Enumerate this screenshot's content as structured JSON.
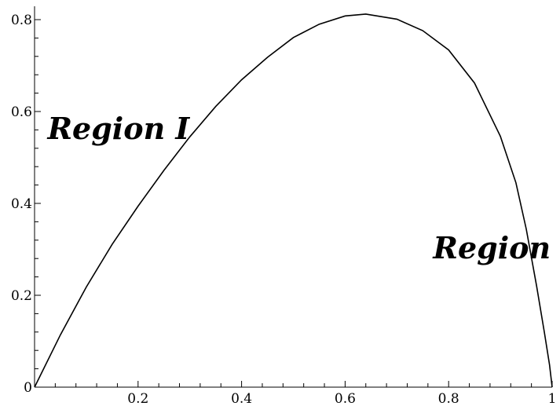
{
  "chart_data": {
    "type": "line",
    "title": "",
    "xlabel": "",
    "ylabel": "",
    "xlim": [
      0,
      1
    ],
    "ylim": [
      0,
      0.8
    ],
    "x_ticks": [
      {
        "value": 0,
        "label": "0"
      },
      {
        "value": 0.2,
        "label": "0.2"
      },
      {
        "value": 0.4,
        "label": "0.4"
      },
      {
        "value": 0.6,
        "label": "0.6"
      },
      {
        "value": 0.8,
        "label": "0.8"
      },
      {
        "value": 1,
        "label": "1"
      }
    ],
    "y_ticks": [
      {
        "value": 0,
        "label": "0"
      },
      {
        "value": 0.2,
        "label": "0.2"
      },
      {
        "value": 0.4,
        "label": "0.4"
      },
      {
        "value": 0.6,
        "label": "0.6"
      },
      {
        "value": 0.8,
        "label": "0.8"
      }
    ],
    "grid": false,
    "series": [
      {
        "color": "#000000",
        "points": [
          [
            0,
            0
          ],
          [
            0.05,
            0.114
          ],
          [
            0.1,
            0.218
          ],
          [
            0.15,
            0.311
          ],
          [
            0.2,
            0.394
          ],
          [
            0.25,
            0.472
          ],
          [
            0.3,
            0.545
          ],
          [
            0.35,
            0.611
          ],
          [
            0.4,
            0.669
          ],
          [
            0.45,
            0.718
          ],
          [
            0.5,
            0.761
          ],
          [
            0.55,
            0.79
          ],
          [
            0.6,
            0.808
          ],
          [
            0.64,
            0.812
          ],
          [
            0.7,
            0.801
          ],
          [
            0.75,
            0.776
          ],
          [
            0.8,
            0.734
          ],
          [
            0.85,
            0.662
          ],
          [
            0.9,
            0.546
          ],
          [
            0.93,
            0.445
          ],
          [
            0.95,
            0.344
          ],
          [
            0.97,
            0.22
          ],
          [
            0.985,
            0.119
          ],
          [
            0.995,
            0.048
          ],
          [
            1,
            0
          ]
        ]
      }
    ],
    "annotations": [
      {
        "text": "Region I",
        "x": 0.025,
        "y": 0.54
      },
      {
        "text": "Region II",
        "x": 0.77,
        "y": 0.28
      }
    ]
  },
  "colors": {
    "line": "#000000",
    "axis": "#000000",
    "background": "#ffffff"
  }
}
